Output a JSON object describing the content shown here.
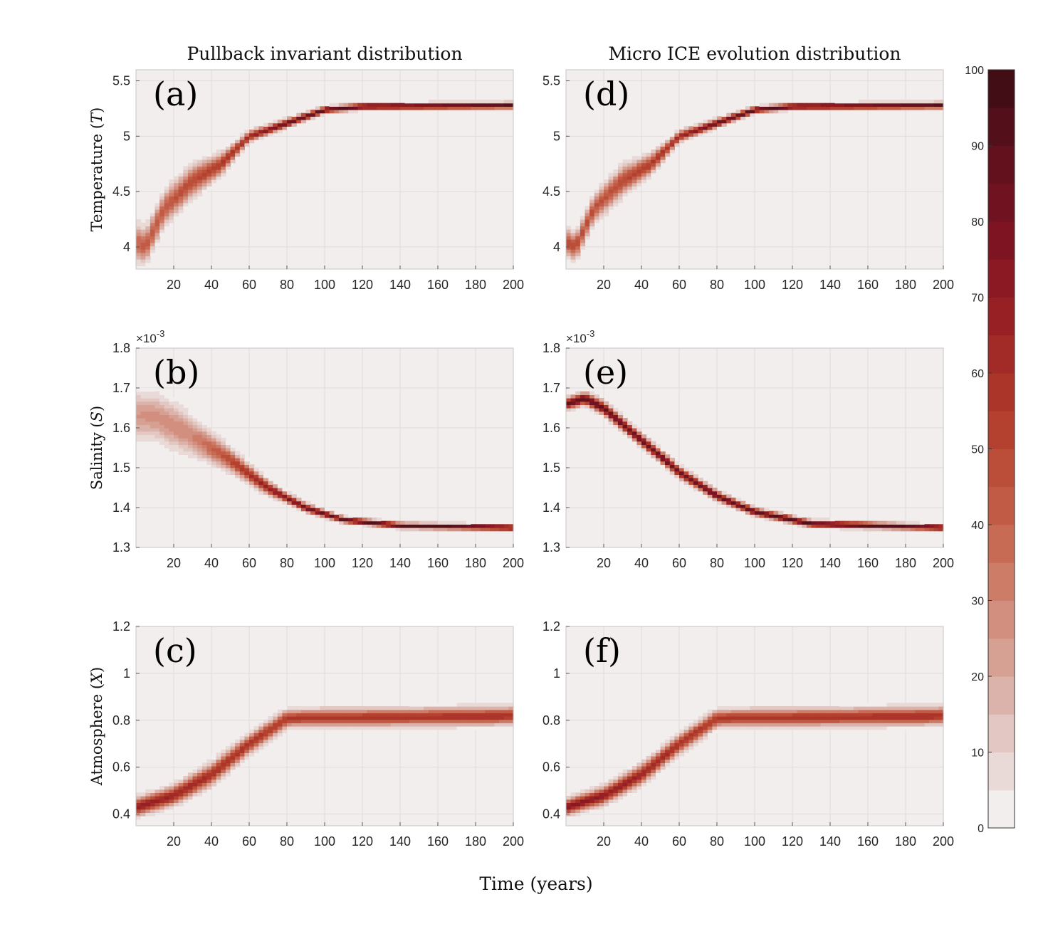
{
  "figure": {
    "xlabel": "Time (years)",
    "column_titles": [
      "Pullback invariant distribution",
      "Micro ICE evolution distribution"
    ]
  },
  "colorbar": {
    "ticks": [
      "0",
      "10",
      "20",
      "30",
      "40",
      "50",
      "60",
      "70",
      "80",
      "90",
      "100"
    ],
    "levels": 20,
    "colors": [
      "#f2eeee",
      "#e9d9d7",
      "#e2c7c2",
      "#dcb3ab",
      "#d6a093",
      "#d28e7e",
      "#cd7c68",
      "#c86b55",
      "#c25b45",
      "#bb4e38",
      "#b4412f",
      "#ac3529",
      "#a22b27",
      "#972025",
      "#8b1924",
      "#7e1422",
      "#701220",
      "#62111d",
      "#53101a",
      "#430d15"
    ]
  },
  "chart_data": [
    {
      "panel": "a",
      "label": "(a)",
      "column": "Pullback invariant distribution",
      "type": "heatmap",
      "ylabel": "Temperature (T)",
      "ylabel_main": "Temperature (",
      "ylabel_var": "T",
      "ylabel_close": ")",
      "xlim": [
        0,
        200
      ],
      "ylim": [
        3.8,
        5.6
      ],
      "xticks": [
        "20",
        "40",
        "60",
        "80",
        "100",
        "120",
        "140",
        "160",
        "180",
        "200"
      ],
      "yticks": [
        "4",
        "4.5",
        "5",
        "5.5"
      ],
      "ytick_values": [
        4,
        4.5,
        5,
        5.5
      ],
      "y_exponent": "",
      "band": {
        "center": [
          [
            0,
            4.05
          ],
          [
            5,
            4.0
          ],
          [
            15,
            4.35
          ],
          [
            30,
            4.6
          ],
          [
            45,
            4.75
          ],
          [
            60,
            5.0
          ],
          [
            80,
            5.12
          ],
          [
            100,
            5.24
          ],
          [
            120,
            5.27
          ],
          [
            200,
            5.28
          ]
        ],
        "width": [
          [
            0,
            0.35
          ],
          [
            30,
            0.3
          ],
          [
            60,
            0.1
          ],
          [
            100,
            0.06
          ],
          [
            200,
            0.06
          ]
        ],
        "peak": [
          [
            0,
            40
          ],
          [
            20,
            45
          ],
          [
            55,
            60
          ],
          [
            80,
            85
          ],
          [
            100,
            95
          ],
          [
            200,
            95
          ]
        ]
      }
    },
    {
      "panel": "b",
      "label": "(b)",
      "column": "Pullback invariant distribution",
      "type": "heatmap",
      "ylabel": "Salinity (S)",
      "ylabel_main": "Salinity (",
      "ylabel_var": "S",
      "ylabel_close": ")",
      "xlim": [
        0,
        200
      ],
      "ylim": [
        1.3,
        1.8
      ],
      "xticks": [
        "20",
        "40",
        "60",
        "80",
        "100",
        "120",
        "140",
        "160",
        "180",
        "200"
      ],
      "yticks": [
        "1.3",
        "1.4",
        "1.5",
        "1.6",
        "1.7",
        "1.8"
      ],
      "ytick_values": [
        1.3,
        1.4,
        1.5,
        1.6,
        1.7,
        1.8
      ],
      "y_exponent": "×10",
      "y_exponent_power": "-3",
      "band": {
        "center": [
          [
            0,
            1.63
          ],
          [
            10,
            1.63
          ],
          [
            30,
            1.58
          ],
          [
            50,
            1.52
          ],
          [
            70,
            1.45
          ],
          [
            90,
            1.4
          ],
          [
            110,
            1.37
          ],
          [
            140,
            1.355
          ],
          [
            200,
            1.35
          ]
        ],
        "width": [
          [
            0,
            0.13
          ],
          [
            20,
            0.12
          ],
          [
            50,
            0.06
          ],
          [
            80,
            0.025
          ],
          [
            110,
            0.016
          ],
          [
            200,
            0.015
          ]
        ],
        "peak": [
          [
            0,
            25
          ],
          [
            30,
            30
          ],
          [
            60,
            60
          ],
          [
            90,
            85
          ],
          [
            120,
            95
          ],
          [
            200,
            95
          ]
        ]
      }
    },
    {
      "panel": "c",
      "label": "(c)",
      "column": "Pullback invariant distribution",
      "type": "heatmap",
      "ylabel": "Atmosphere (X)",
      "ylabel_main": "Atmosphere (",
      "ylabel_var": "X",
      "ylabel_close": ")",
      "xlim": [
        0,
        200
      ],
      "ylim": [
        0.35,
        1.2
      ],
      "xticks": [
        "20",
        "40",
        "60",
        "80",
        "100",
        "120",
        "140",
        "160",
        "180",
        "200"
      ],
      "yticks": [
        "0.4",
        "0.6",
        "0.8",
        "1",
        "1.2"
      ],
      "ytick_values": [
        0.4,
        0.6,
        0.8,
        1.0,
        1.2
      ],
      "y_exponent": "",
      "band": {
        "center": [
          [
            0,
            0.43
          ],
          [
            20,
            0.48
          ],
          [
            40,
            0.57
          ],
          [
            60,
            0.7
          ],
          [
            80,
            0.81
          ],
          [
            200,
            0.82
          ]
        ],
        "width": [
          [
            0,
            0.08
          ],
          [
            40,
            0.1
          ],
          [
            80,
            0.08
          ],
          [
            200,
            0.08
          ]
        ],
        "peak": [
          [
            0,
            70
          ],
          [
            40,
            60
          ],
          [
            80,
            55
          ],
          [
            200,
            60
          ]
        ]
      }
    },
    {
      "panel": "d",
      "label": "(d)",
      "column": "Micro ICE evolution distribution",
      "type": "heatmap",
      "ylabel": "",
      "ylabel_main": "",
      "ylabel_var": "",
      "ylabel_close": "",
      "xlim": [
        0,
        200
      ],
      "ylim": [
        3.8,
        5.6
      ],
      "xticks": [
        "20",
        "40",
        "60",
        "80",
        "100",
        "120",
        "140",
        "160",
        "180",
        "200"
      ],
      "yticks": [
        "4",
        "4.5",
        "5",
        "5.5"
      ],
      "ytick_values": [
        4,
        4.5,
        5,
        5.5
      ],
      "y_exponent": "",
      "band": {
        "center": [
          [
            0,
            4.05
          ],
          [
            5,
            4.0
          ],
          [
            15,
            4.35
          ],
          [
            30,
            4.6
          ],
          [
            45,
            4.75
          ],
          [
            60,
            5.0
          ],
          [
            80,
            5.12
          ],
          [
            100,
            5.24
          ],
          [
            120,
            5.27
          ],
          [
            200,
            5.28
          ]
        ],
        "width": [
          [
            0,
            0.25
          ],
          [
            30,
            0.28
          ],
          [
            60,
            0.1
          ],
          [
            100,
            0.06
          ],
          [
            200,
            0.06
          ]
        ],
        "peak": [
          [
            0,
            50
          ],
          [
            20,
            45
          ],
          [
            55,
            60
          ],
          [
            80,
            85
          ],
          [
            100,
            95
          ],
          [
            200,
            95
          ]
        ]
      }
    },
    {
      "panel": "e",
      "label": "(e)",
      "column": "Micro ICE evolution distribution",
      "type": "heatmap",
      "ylabel": "",
      "ylabel_main": "",
      "ylabel_var": "",
      "ylabel_close": "",
      "xlim": [
        0,
        200
      ],
      "ylim": [
        1.3,
        1.8
      ],
      "xticks": [
        "20",
        "40",
        "60",
        "80",
        "100",
        "120",
        "140",
        "160",
        "180",
        "200"
      ],
      "yticks": [
        "1.3",
        "1.4",
        "1.5",
        "1.6",
        "1.7",
        "1.8"
      ],
      "ytick_values": [
        1.3,
        1.4,
        1.5,
        1.6,
        1.7,
        1.8
      ],
      "y_exponent": "×10",
      "y_exponent_power": "-3",
      "band": {
        "center": [
          [
            0,
            1.66
          ],
          [
            10,
            1.675
          ],
          [
            20,
            1.65
          ],
          [
            40,
            1.57
          ],
          [
            60,
            1.49
          ],
          [
            80,
            1.43
          ],
          [
            100,
            1.39
          ],
          [
            130,
            1.36
          ],
          [
            200,
            1.35
          ]
        ],
        "width": [
          [
            0,
            0.03
          ],
          [
            20,
            0.035
          ],
          [
            60,
            0.03
          ],
          [
            100,
            0.02
          ],
          [
            200,
            0.015
          ]
        ],
        "peak": [
          [
            0,
            90
          ],
          [
            30,
            85
          ],
          [
            70,
            85
          ],
          [
            120,
            95
          ],
          [
            200,
            95
          ]
        ]
      }
    },
    {
      "panel": "f",
      "label": "(f)",
      "column": "Micro ICE evolution distribution",
      "type": "heatmap",
      "ylabel": "",
      "ylabel_main": "",
      "ylabel_var": "",
      "ylabel_close": "",
      "xlim": [
        0,
        200
      ],
      "ylim": [
        0.35,
        1.2
      ],
      "xticks": [
        "20",
        "40",
        "60",
        "80",
        "100",
        "120",
        "140",
        "160",
        "180",
        "200"
      ],
      "yticks": [
        "0.4",
        "0.6",
        "0.8",
        "1",
        "1.2"
      ],
      "ytick_values": [
        0.4,
        0.6,
        0.8,
        1.0,
        1.2
      ],
      "y_exponent": "",
      "band": {
        "center": [
          [
            0,
            0.43
          ],
          [
            20,
            0.48
          ],
          [
            40,
            0.57
          ],
          [
            60,
            0.7
          ],
          [
            80,
            0.81
          ],
          [
            200,
            0.82
          ]
        ],
        "width": [
          [
            0,
            0.07
          ],
          [
            40,
            0.09
          ],
          [
            80,
            0.08
          ],
          [
            200,
            0.08
          ]
        ],
        "peak": [
          [
            0,
            75
          ],
          [
            40,
            65
          ],
          [
            80,
            55
          ],
          [
            200,
            60
          ]
        ]
      }
    }
  ]
}
